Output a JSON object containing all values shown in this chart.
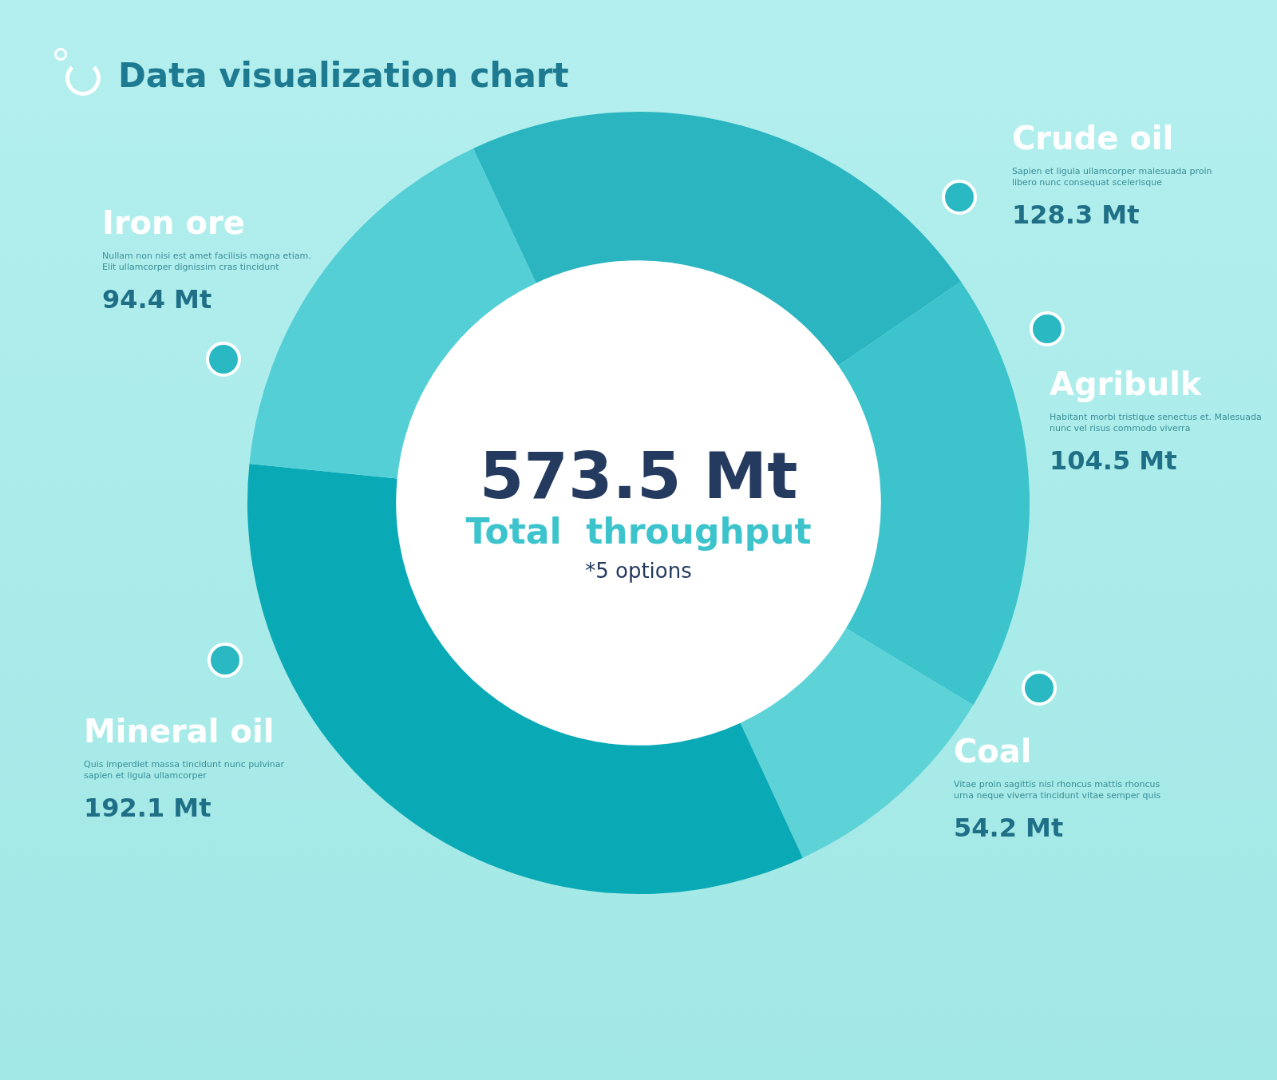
{
  "chart_data": {
    "type": "donut",
    "title": "Data visualization chart",
    "categories": [
      "Crude oil",
      "Agribulk",
      "Coal",
      "Mineral oil",
      "Iron ore"
    ],
    "values": [
      128.3,
      104.5,
      54.2,
      192.1,
      94.4
    ],
    "colors": [
      "#2bb5c0",
      "#3cc3cc",
      "#5dd3d8",
      "#0aa9b6",
      "#55cfd6"
    ],
    "value_labels": [
      "128.3 Mt",
      "104.5 Mt",
      "54.2 Mt",
      "192.1 Mt",
      "94.4 Mt"
    ],
    "annotations": [
      "573.5 Mt",
      "Total  throughput",
      "*5 options",
      "Sapien et ligula ullamcorper malesuada proin libero nunc consequat scelerisque",
      "Habitant morbi tristique senectus et. Malesuada nunc vel risus commodo viverra",
      "Vitae proin sagittis nisl rhoncus mattis rhoncus urna neque viverra tincidunt vitae semper quis",
      "Quis imperdiet massa tincidunt nunc pulvinar sapien et ligula ullamcorper",
      "Nullam non nisi est amet facilisis magna etiam. Elit ullamcorper dignissim cras tincidunt"
    ]
  }
}
